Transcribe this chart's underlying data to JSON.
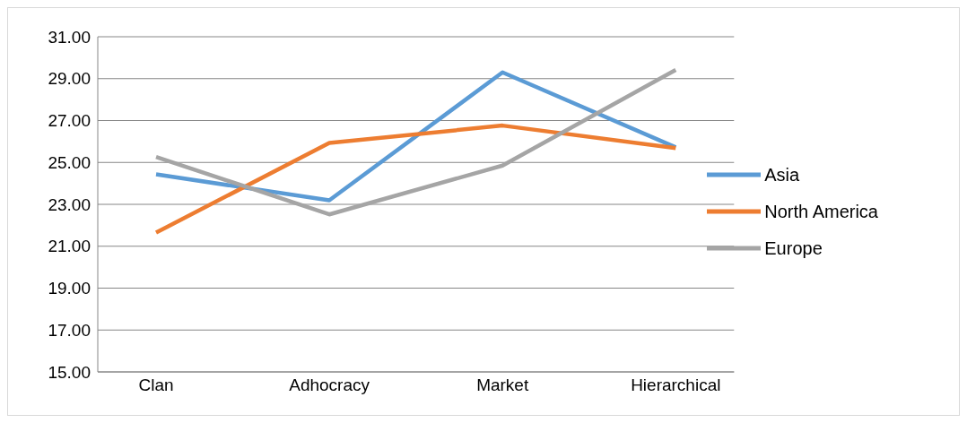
{
  "chart_data": {
    "type": "line",
    "categories": [
      "Clan",
      "Adhocracy",
      "Market",
      "Hierarchical"
    ],
    "series": [
      {
        "name": "Asia",
        "color": "#5b9bd5",
        "values": [
          24.43,
          23.19,
          29.3,
          25.72
        ]
      },
      {
        "name": "North America",
        "color": "#ed7d31",
        "values": [
          21.65,
          25.93,
          26.76,
          25.68
        ]
      },
      {
        "name": "Europe",
        "color": "#a5a5a5",
        "values": [
          25.26,
          22.52,
          24.85,
          29.42
        ]
      }
    ],
    "ylim": [
      15,
      31
    ],
    "yticks": [
      {
        "value": 15,
        "label": "15.00"
      },
      {
        "value": 17,
        "label": "17.00"
      },
      {
        "value": 19,
        "label": "19.00"
      },
      {
        "value": 21,
        "label": "21.00"
      },
      {
        "value": 23,
        "label": "23.00"
      },
      {
        "value": 25,
        "label": "25.00"
      },
      {
        "value": 27,
        "label": "27.00"
      },
      {
        "value": 29,
        "label": "29.00"
      },
      {
        "value": 31,
        "label": "31.00"
      }
    ],
    "grid": "y",
    "legend": "right",
    "marker": "none",
    "line_style": "solid"
  }
}
